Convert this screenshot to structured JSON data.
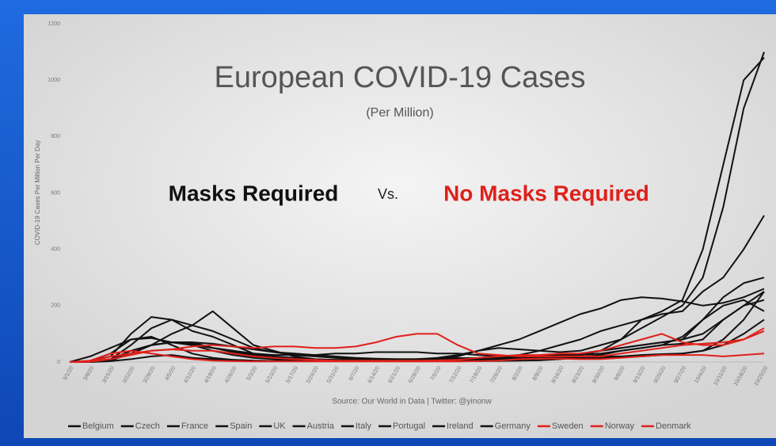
{
  "chart_data": {
    "type": "line",
    "title": "European COVID-19 Cases",
    "subtitle": "(Per Million)",
    "ylabel": "COVID-19 Cases Per Million Per Day",
    "annotations": {
      "left": "Masks Required",
      "middle": "Vs.",
      "right": "No Masks Required"
    },
    "source": "Source: Our World in Data | Twitter: @yinonw",
    "ylim": [
      0,
      1200
    ],
    "yticks": [
      0,
      200,
      400,
      600,
      800,
      1000,
      1200
    ],
    "categories": [
      "3/1/20",
      "3/8/20",
      "3/15/20",
      "3/22/20",
      "3/29/20",
      "4/5/20",
      "4/12/20",
      "4/19/20",
      "4/26/20",
      "5/3/20",
      "5/10/20",
      "5/17/20",
      "5/24/20",
      "5/31/20",
      "6/7/20",
      "6/14/20",
      "6/21/20",
      "6/28/20",
      "7/5/20",
      "7/12/20",
      "7/19/20",
      "7/26/20",
      "8/2/20",
      "8/9/20",
      "8/16/20",
      "8/23/20",
      "8/30/20",
      "9/6/20",
      "9/13/20",
      "9/20/20",
      "9/27/20",
      "10/4/20",
      "10/11/20",
      "10/18/20",
      "10/25/20"
    ],
    "series": [
      {
        "name": "Belgium",
        "color": "#111111",
        "values": [
          0,
          1,
          10,
          60,
          120,
          150,
          130,
          110,
          80,
          50,
          35,
          25,
          20,
          15,
          10,
          9,
          8,
          8,
          10,
          20,
          40,
          50,
          45,
          40,
          35,
          40,
          60,
          80,
          120,
          160,
          200,
          300,
          550,
          900,
          1100
        ]
      },
      {
        "name": "Czech",
        "color": "#111111",
        "values": [
          0,
          0,
          3,
          10,
          20,
          25,
          15,
          10,
          8,
          5,
          4,
          4,
          4,
          3,
          3,
          4,
          6,
          10,
          12,
          12,
          12,
          14,
          20,
          20,
          20,
          25,
          40,
          80,
          150,
          180,
          220,
          400,
          700,
          1000,
          1080
        ]
      },
      {
        "name": "France",
        "color": "#111111",
        "values": [
          0,
          1,
          8,
          30,
          60,
          70,
          65,
          50,
          35,
          20,
          15,
          10,
          8,
          8,
          8,
          10,
          10,
          10,
          10,
          12,
          15,
          20,
          25,
          40,
          60,
          80,
          110,
          130,
          150,
          170,
          180,
          250,
          300,
          400,
          520
        ]
      },
      {
        "name": "Spain",
        "color": "#111111",
        "values": [
          0,
          2,
          20,
          100,
          160,
          150,
          110,
          90,
          60,
          30,
          20,
          15,
          10,
          8,
          8,
          8,
          8,
          10,
          15,
          25,
          40,
          60,
          80,
          110,
          140,
          170,
          190,
          220,
          230,
          225,
          215,
          200,
          210,
          230,
          260
        ]
      },
      {
        "name": "UK",
        "color": "#111111",
        "values": [
          0,
          0,
          5,
          30,
          60,
          70,
          70,
          65,
          55,
          45,
          35,
          30,
          25,
          20,
          15,
          12,
          10,
          10,
          9,
          9,
          10,
          12,
          14,
          15,
          16,
          18,
          25,
          40,
          50,
          60,
          90,
          150,
          230,
          280,
          300
        ]
      },
      {
        "name": "Austria",
        "color": "#111111",
        "values": [
          0,
          2,
          30,
          80,
          90,
          60,
          30,
          15,
          8,
          5,
          4,
          5,
          5,
          5,
          5,
          5,
          6,
          8,
          12,
          14,
          14,
          15,
          15,
          18,
          20,
          30,
          40,
          50,
          60,
          70,
          80,
          100,
          150,
          200,
          250
        ]
      },
      {
        "name": "Italy",
        "color": "#111111",
        "values": [
          0,
          20,
          50,
          80,
          85,
          70,
          60,
          50,
          40,
          25,
          15,
          10,
          8,
          7,
          6,
          5,
          4,
          4,
          3,
          3,
          3,
          4,
          5,
          6,
          10,
          15,
          20,
          20,
          25,
          28,
          30,
          40,
          80,
          150,
          250
        ]
      },
      {
        "name": "Portugal",
        "color": "#111111",
        "values": [
          0,
          0,
          8,
          40,
          60,
          70,
          70,
          50,
          40,
          30,
          25,
          25,
          25,
          30,
          30,
          35,
          35,
          35,
          30,
          30,
          25,
          20,
          20,
          20,
          22,
          25,
          30,
          40,
          50,
          60,
          65,
          80,
          150,
          200,
          220
        ]
      },
      {
        "name": "Ireland",
        "color": "#111111",
        "values": [
          0,
          1,
          10,
          30,
          60,
          100,
          130,
          180,
          120,
          60,
          40,
          20,
          10,
          6,
          4,
          3,
          3,
          3,
          4,
          5,
          8,
          15,
          20,
          20,
          25,
          30,
          40,
          50,
          60,
          70,
          80,
          150,
          200,
          220,
          180
        ]
      },
      {
        "name": "Germany",
        "color": "#111111",
        "values": [
          0,
          1,
          10,
          40,
          60,
          70,
          60,
          40,
          25,
          15,
          10,
          8,
          6,
          5,
          5,
          5,
          5,
          5,
          5,
          6,
          7,
          9,
          10,
          12,
          13,
          14,
          15,
          17,
          20,
          25,
          30,
          40,
          60,
          100,
          150
        ]
      },
      {
        "name": "Sweden",
        "color": "#e0201b",
        "values": [
          0,
          1,
          10,
          25,
          40,
          45,
          55,
          60,
          55,
          50,
          55,
          55,
          50,
          50,
          55,
          70,
          90,
          100,
          100,
          60,
          30,
          25,
          20,
          20,
          20,
          20,
          20,
          30,
          40,
          50,
          60,
          65,
          70,
          80,
          120
        ]
      },
      {
        "name": "Norway",
        "color": "#e0201b",
        "values": [
          0,
          5,
          30,
          40,
          30,
          20,
          10,
          5,
          3,
          2,
          2,
          2,
          2,
          2,
          2,
          2,
          2,
          2,
          2,
          2,
          3,
          5,
          10,
          12,
          12,
          10,
          10,
          15,
          20,
          25,
          25,
          25,
          20,
          25,
          30
        ]
      },
      {
        "name": "Denmark",
        "color": "#e0201b",
        "values": [
          0,
          1,
          20,
          30,
          40,
          45,
          40,
          40,
          30,
          20,
          15,
          10,
          8,
          5,
          5,
          5,
          5,
          5,
          6,
          8,
          15,
          20,
          25,
          25,
          30,
          30,
          40,
          60,
          80,
          100,
          70,
          60,
          60,
          80,
          110
        ]
      }
    ]
  }
}
